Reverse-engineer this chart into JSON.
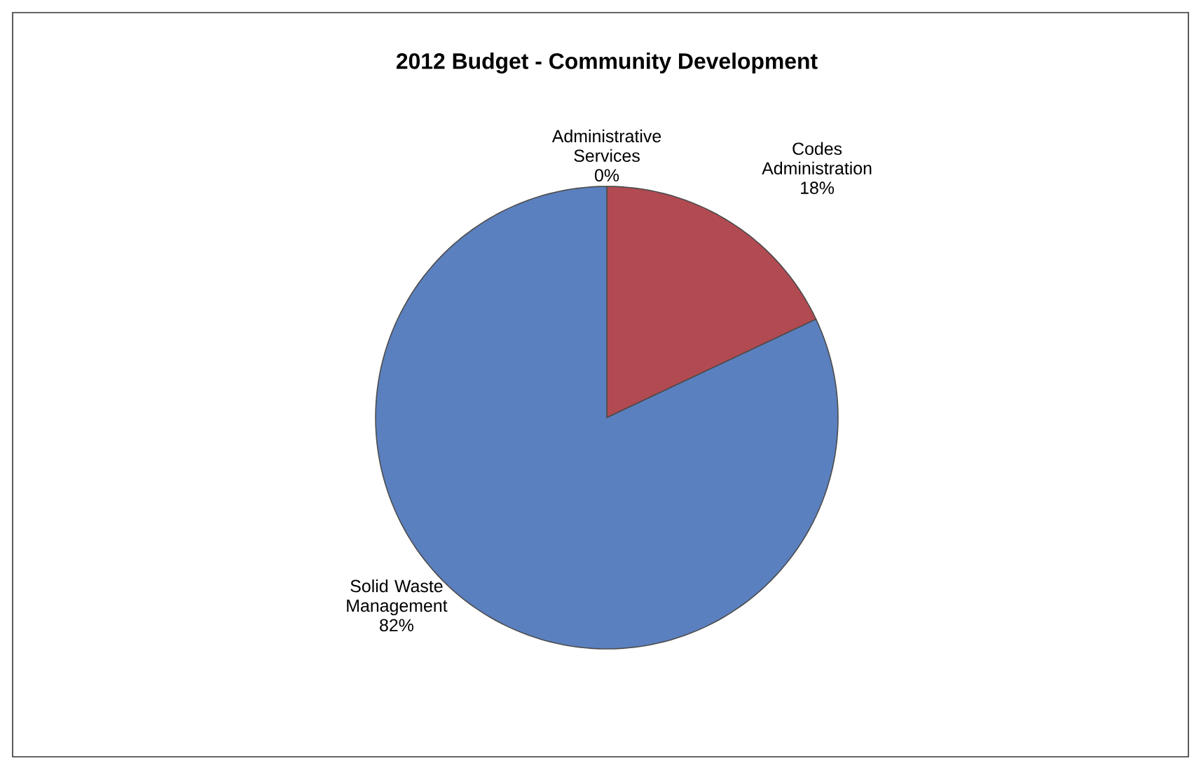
{
  "chart_data": {
    "type": "pie",
    "title": "2012 Budget - Community Development",
    "categories": [
      "Administrative Services",
      "Codes Administration",
      "Solid Waste Management"
    ],
    "values": [
      0,
      18,
      82
    ],
    "colors": [
      "#8a8fa0",
      "#b24a52",
      "#5b80bf"
    ],
    "value_labels": [
      "0%",
      "18%",
      "82%"
    ]
  }
}
